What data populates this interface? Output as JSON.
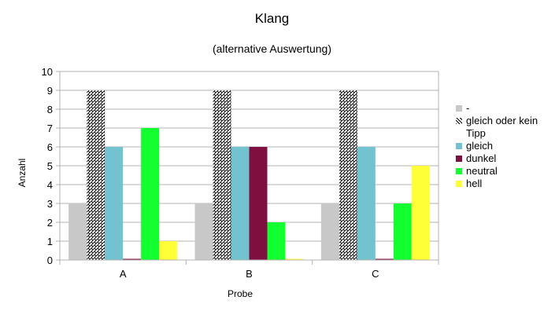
{
  "chart_data": {
    "type": "bar",
    "title": "Klang",
    "subtitle": "(alternative Auswertung)",
    "xlabel": "Probe",
    "ylabel": "Anzahl",
    "categories": [
      "A",
      "B",
      "C"
    ],
    "ylim": [
      0,
      10
    ],
    "yticks": [
      0,
      1,
      2,
      3,
      4,
      5,
      6,
      7,
      8,
      9,
      10
    ],
    "grid": true,
    "legend_position": "right",
    "series": [
      {
        "name": "-",
        "values": [
          3,
          3,
          3
        ],
        "color": "#c8c8c8",
        "pattern": "solid"
      },
      {
        "name": "gleich oder kein Tipp",
        "values": [
          9,
          9,
          9
        ],
        "color": "#000000",
        "pattern": "zigzag"
      },
      {
        "name": "gleich",
        "values": [
          6,
          6,
          6
        ],
        "color": "#72c3cf",
        "pattern": "solid"
      },
      {
        "name": "dunkel",
        "values": [
          0,
          6,
          0
        ],
        "color": "#7e0f3f",
        "pattern": "solid"
      },
      {
        "name": "neutral",
        "values": [
          7,
          2,
          3
        ],
        "color": "#14ff30",
        "pattern": "solid"
      },
      {
        "name": "hell",
        "values": [
          1,
          0,
          5
        ],
        "color": "#ffff38",
        "pattern": "solid"
      }
    ]
  }
}
